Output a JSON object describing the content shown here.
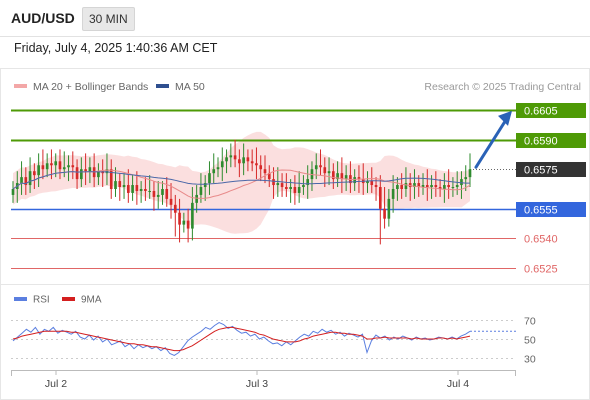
{
  "header": {
    "symbol": "AUD/USD",
    "timeframe": "30 MIN",
    "datetime": "Friday, July 4, 2025 1:40:36 AM CET"
  },
  "legend": {
    "ma20": "MA 20 + Bollinger Bands",
    "ma50": "MA 50",
    "copyright": "Research © 2025 Trading Central"
  },
  "rsi_legend": {
    "rsi": "RSI",
    "ma": "9MA"
  },
  "colors": {
    "resistance": "#4e9a06",
    "support_strong": "#3366dd",
    "support": "#e06666",
    "current": "#333333",
    "arrow": "#2a62b7",
    "bull": "#2e8b2e",
    "bear": "#d62828",
    "band": "#f8c4c4",
    "ma20": "#e88a8a",
    "ma50": "#4a67a8",
    "rsi": "#5b7fe0",
    "rsi_ma": "#d41f1f"
  },
  "chart_data": [
    {
      "type": "candlestick",
      "x_labels": [
        "Jul 2",
        "Jul 3",
        "Jul 4"
      ],
      "ylim": [
        0.6518,
        0.6612
      ],
      "levels": [
        {
          "label": "0.6605",
          "value": 0.6605,
          "kind": "resistance"
        },
        {
          "label": "0.6590",
          "value": 0.659,
          "kind": "resistance"
        },
        {
          "label": "0.6575",
          "value": 0.6575,
          "kind": "current"
        },
        {
          "label": "0.6555",
          "value": 0.6555,
          "kind": "support_strong"
        },
        {
          "label": "0.6540",
          "value": 0.654,
          "kind": "support"
        },
        {
          "label": "0.6525",
          "value": 0.6525,
          "kind": "support"
        }
      ],
      "target": {
        "from": 0.6575,
        "to": 0.6605
      },
      "closes": [
        0.6565,
        0.6568,
        0.6571,
        0.6567,
        0.6574,
        0.6572,
        0.6577,
        0.6575,
        0.6578,
        0.6577,
        0.6579,
        0.6575,
        0.6576,
        0.6577,
        0.6576,
        0.657,
        0.6575,
        0.6574,
        0.6576,
        0.6571,
        0.6574,
        0.6573,
        0.6575,
        0.6565,
        0.6569,
        0.6566,
        0.6567,
        0.6563,
        0.6567,
        0.6564,
        0.6565,
        0.6564,
        0.6564,
        0.6561,
        0.6562,
        0.6565,
        0.656,
        0.6557,
        0.6553,
        0.6547,
        0.6549,
        0.6545,
        0.6558,
        0.6562,
        0.6566,
        0.6568,
        0.6573,
        0.6575,
        0.6576,
        0.6579,
        0.6581,
        0.6582,
        0.658,
        0.6578,
        0.6581,
        0.6579,
        0.6578,
        0.6577,
        0.6575,
        0.6573,
        0.657,
        0.6567,
        0.6568,
        0.6566,
        0.6565,
        0.6566,
        0.6563,
        0.6566,
        0.6567,
        0.657,
        0.6575,
        0.6577,
        0.6576,
        0.6573,
        0.6574,
        0.657,
        0.6573,
        0.657,
        0.6572,
        0.6568,
        0.6571,
        0.657,
        0.6568,
        0.6569,
        0.6567,
        0.6566,
        0.6555,
        0.655,
        0.656,
        0.6565,
        0.6567,
        0.6565,
        0.6568,
        0.6566,
        0.6568,
        0.6566,
        0.6567,
        0.6566,
        0.6567,
        0.6566,
        0.6565,
        0.6567,
        0.6566,
        0.6566,
        0.6567,
        0.657,
        0.6571,
        0.6575
      ]
    },
    {
      "type": "line",
      "title": "RSI",
      "y_ticks": [
        70,
        50,
        30
      ],
      "ylim": [
        20,
        80
      ],
      "series": [
        {
          "name": "RSI",
          "values": [
            48,
            52,
            56,
            60,
            57,
            62,
            55,
            60,
            58,
            62,
            56,
            59,
            57,
            55,
            58,
            52,
            50,
            54,
            49,
            53,
            47,
            50,
            44,
            46,
            48,
            42,
            45,
            40,
            44,
            41,
            43,
            40,
            42,
            38,
            41,
            35,
            33,
            36,
            42,
            48,
            52,
            55,
            58,
            62,
            60,
            64,
            67,
            65,
            61,
            63,
            59,
            56,
            57,
            53,
            55,
            50,
            52,
            48,
            45,
            46,
            43,
            47,
            44,
            48,
            52,
            55,
            53,
            58,
            56,
            60,
            57,
            59,
            55,
            57,
            53,
            56,
            54,
            52,
            55,
            36,
            48,
            54,
            51,
            53,
            49,
            52,
            50,
            53,
            51,
            49,
            52,
            50,
            51,
            49,
            50,
            52,
            51,
            50,
            52,
            50,
            53,
            55,
            58
          ]
        },
        {
          "name": "9MA",
          "values": [
            50,
            51,
            53,
            54,
            55,
            56,
            57,
            58,
            58,
            58,
            58,
            58,
            58,
            57,
            57,
            56,
            55,
            54,
            53,
            52,
            51,
            50,
            49,
            48,
            47,
            46,
            45,
            45,
            44,
            44,
            43,
            42,
            42,
            41,
            40,
            39,
            38,
            38,
            39,
            41,
            43,
            46,
            49,
            52,
            55,
            58,
            60,
            61,
            62,
            62,
            61,
            60,
            59,
            58,
            57,
            55,
            54,
            52,
            50,
            49,
            48,
            47,
            47,
            47,
            48,
            50,
            51,
            53,
            54,
            55,
            56,
            57,
            57,
            56,
            56,
            55,
            55,
            54,
            53,
            50,
            50,
            51,
            51,
            52,
            51,
            51,
            51,
            51,
            51,
            50,
            51,
            50,
            50,
            50,
            50,
            51,
            51,
            50,
            51,
            50,
            51,
            52,
            53
          ]
        }
      ]
    }
  ]
}
